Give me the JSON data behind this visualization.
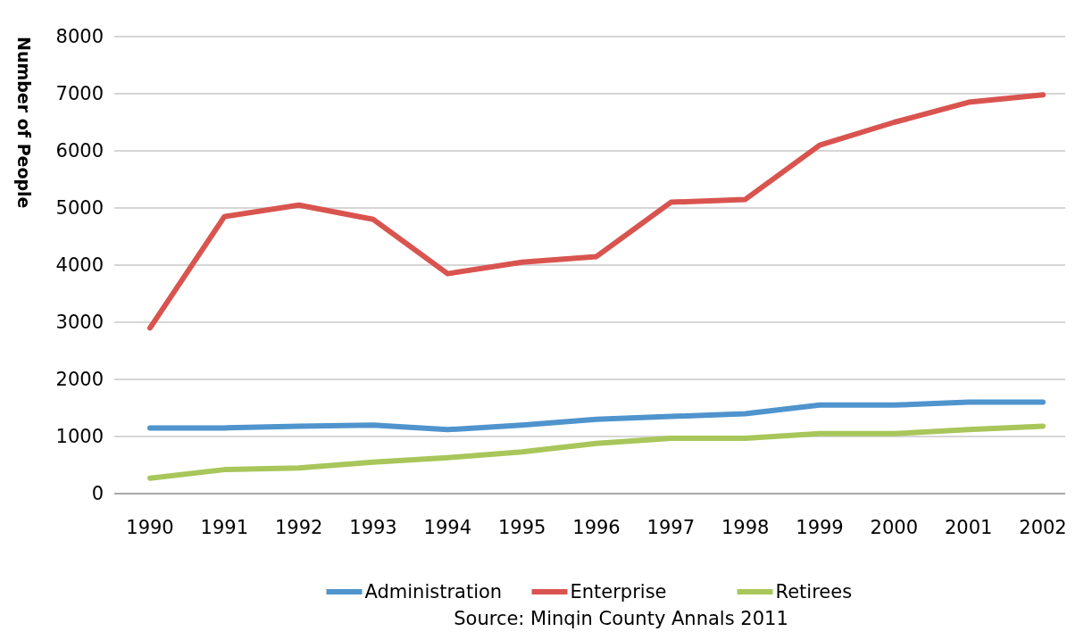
{
  "chart_data": {
    "type": "line",
    "ylabel": "Number of People",
    "categories": [
      "1990",
      "1991",
      "1992",
      "1993",
      "1994",
      "1995",
      "1996",
      "1997",
      "1998",
      "1999",
      "2000",
      "2001",
      "2002"
    ],
    "series": [
      {
        "name": "Administration",
        "color": "#4f94cd",
        "values": [
          1150,
          1150,
          1180,
          1200,
          1120,
          1200,
          1300,
          1350,
          1400,
          1550,
          1550,
          1600,
          1600
        ]
      },
      {
        "name": "Enterprise",
        "color": "#d9544f",
        "values": [
          2900,
          4850,
          5050,
          4800,
          3850,
          4050,
          4150,
          5100,
          5150,
          6100,
          6500,
          6850,
          6980
        ]
      },
      {
        "name": "Retirees",
        "color": "#a8c65a",
        "values": [
          270,
          420,
          450,
          550,
          630,
          730,
          880,
          970,
          970,
          1050,
          1050,
          1120,
          1180
        ]
      }
    ],
    "ylim": [
      0,
      8000
    ],
    "yticks": [
      0,
      1000,
      2000,
      3000,
      4000,
      5000,
      6000,
      7000,
      8000
    ],
    "grid": "y",
    "legend": "bottom",
    "marker": "none",
    "line_style": "solid",
    "annotations": [
      "Source: Minqin County Annals 2011"
    ]
  }
}
